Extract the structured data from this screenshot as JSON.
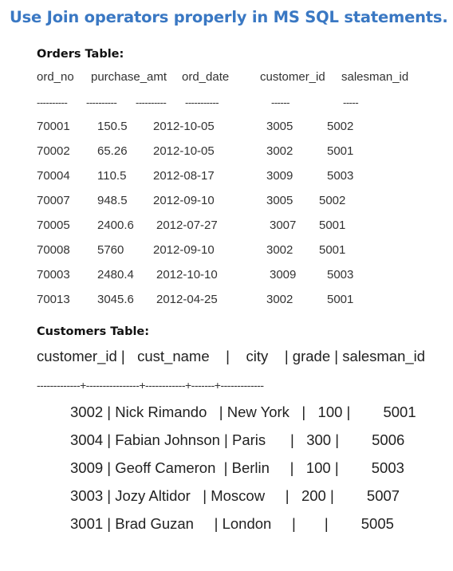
{
  "title": "Use Join operators properly in MS SQL statements.",
  "orders": {
    "heading": "Orders Table:",
    "headers": [
      "ord_no",
      "purchase_amt",
      "ord_date",
      "customer_id",
      "salesman_id"
    ],
    "dividers": [
      "----------",
      "----------",
      "----------",
      "-----------",
      "------",
      "-----"
    ],
    "rows": [
      [
        "70001",
        "150.5",
        "2012-10-05",
        "3005",
        "5002"
      ],
      [
        "70002",
        "65.26",
        "2012-10-05",
        "3002",
        "5001"
      ],
      [
        "70004",
        "110.5",
        "2012-08-17",
        "3009",
        "5003"
      ],
      [
        "70007",
        "948.5",
        "2012-09-10",
        "3005",
        "5002"
      ],
      [
        "70005",
        "2400.6",
        "2012-07-27",
        "3007",
        "5001"
      ],
      [
        "70008",
        "5760",
        "2012-09-10",
        "3002",
        "5001"
      ],
      [
        "70003",
        "2480.4",
        "2012-10-10",
        "3009",
        "5003"
      ],
      [
        "70013",
        "3045.6",
        "2012-04-25",
        "3002",
        "5001"
      ]
    ]
  },
  "customers": {
    "heading": "Customers Table:",
    "header_line": "customer_id |   cust_name    |    city    | grade | salesman_id",
    "divider_line": "-------------+----------------+------------+-------+-------------",
    "rows": [
      "3002 | Nick Rimando   | New York   |   100 |        5001",
      "3004 | Fabian Johnson | Paris      |   300 |        5006",
      "3009 | Geoff Cameron  | Berlin     |   100 |        5003",
      "3003 | Jozy Altidor   | Moscow     |   200 |        5007",
      "3001 | Brad Guzan     | London     |       |        5005"
    ]
  }
}
